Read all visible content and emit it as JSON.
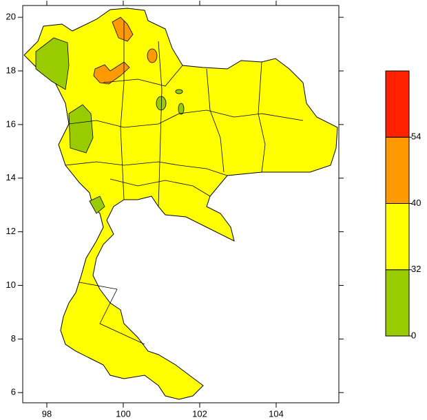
{
  "chart_data": {
    "type": "contour-map",
    "xlim": [
      97.37,
      105.64
    ],
    "ylim": [
      5.62,
      20.44
    ],
    "xticks": [
      98,
      100,
      102,
      104
    ],
    "yticks": [
      6,
      8,
      10,
      12,
      14,
      16,
      18,
      20
    ],
    "colorbar": {
      "levels": [
        0,
        32,
        40,
        54
      ],
      "colors": [
        "#99cc00",
        "#ffff00",
        "#ff9900",
        "#ff2200"
      ]
    }
  }
}
